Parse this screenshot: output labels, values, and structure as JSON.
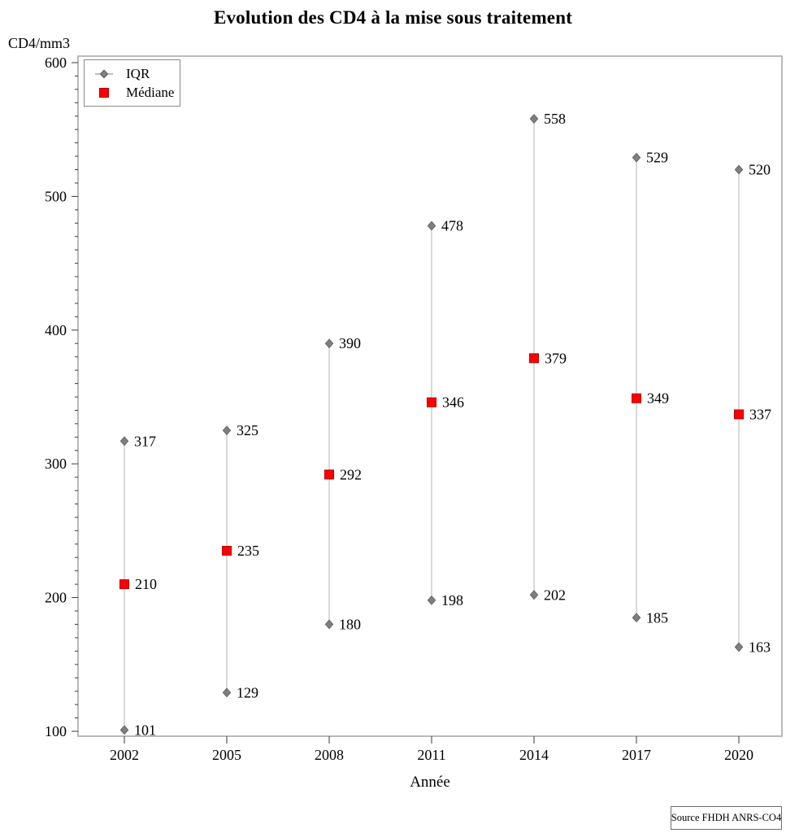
{
  "chart_data": {
    "type": "scatter",
    "title": "Evolution des CD4 à la mise sous traitement",
    "xlabel": "Année",
    "ylabel": "CD4/mm3",
    "categories": [
      "2002",
      "2005",
      "2008",
      "2011",
      "2014",
      "2017",
      "2020"
    ],
    "series": [
      {
        "name": "IQR",
        "marker": "diamond",
        "color": "#7f7f7f",
        "q1": [
          101,
          129,
          180,
          198,
          202,
          185,
          163
        ],
        "q3": [
          317,
          325,
          390,
          478,
          558,
          529,
          520
        ]
      },
      {
        "name": "Médiane",
        "marker": "square",
        "color": "#ff0000",
        "values": [
          210,
          235,
          292,
          346,
          379,
          349,
          337
        ]
      }
    ],
    "ylim": [
      100,
      600
    ],
    "y_major_step": 100,
    "y_minor_step": 10,
    "y_tick_labels": [
      "100",
      "200",
      "300",
      "400",
      "500",
      "600"
    ],
    "legend_position": "top-left",
    "grid": false,
    "source": "Source FHDH ANRS-CO4",
    "colors": {
      "iqr_marker": "#7f7f7f",
      "iqr_marker_edge": "#5a5a5a",
      "median_marker": "#ff0000",
      "median_marker_edge": "#b40000",
      "range_line": "#c9c9c9",
      "frame": "#a3a3a3",
      "tick": "#3a3a3a"
    }
  }
}
